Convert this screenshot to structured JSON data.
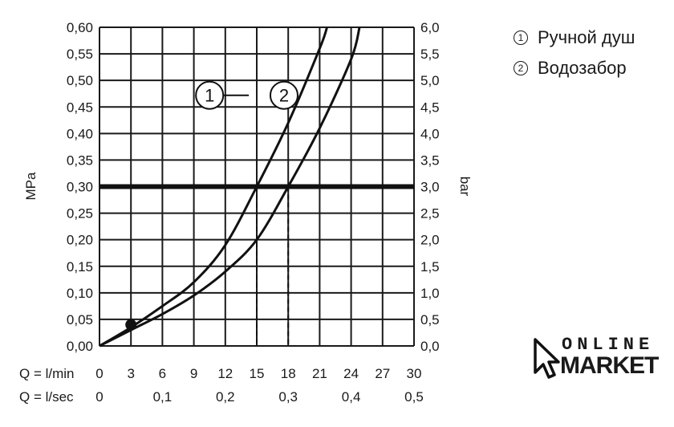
{
  "chart_data": {
    "type": "line",
    "y_left_label": "MPa",
    "y_right_label": "bar",
    "y_left_ticks": [
      "0,00",
      "0,05",
      "0,10",
      "0,15",
      "0,20",
      "0,25",
      "0,30",
      "0,35",
      "0,40",
      "0,45",
      "0,50",
      "0,55",
      "0,60"
    ],
    "y_right_ticks": [
      "0,0",
      "0,5",
      "1,0",
      "1,5",
      "2,0",
      "2,5",
      "3,0",
      "3,5",
      "4,0",
      "4,5",
      "5,0",
      "5,5",
      "6,0"
    ],
    "ylim": [
      0,
      0.6
    ],
    "x_lmin_label": "Q = l/min",
    "x_lmin_ticks": [
      "0",
      "3",
      "6",
      "9",
      "12",
      "15",
      "18",
      "21",
      "24",
      "27",
      "30"
    ],
    "x_lsec_label": "Q = l/sec",
    "x_lsec_ticks": [
      "0",
      "0,1",
      "0,2",
      "0,3",
      "0,4",
      "0,5"
    ],
    "xlim": [
      0,
      30
    ],
    "reference_pressure_mpa": 0.3,
    "series": [
      {
        "marker": "1",
        "x": [
          0,
          3,
          6,
          9,
          12,
          15,
          18,
          21,
          21.7
        ],
        "y": [
          0,
          0.035,
          0.075,
          0.12,
          0.19,
          0.3,
          0.42,
          0.56,
          0.6
        ]
      },
      {
        "marker": "2",
        "x": [
          0,
          3,
          6,
          9,
          12,
          15,
          18,
          21,
          24,
          24.8
        ],
        "y": [
          0,
          0.03,
          0.06,
          0.095,
          0.14,
          0.2,
          0.3,
          0.41,
          0.54,
          0.6
        ]
      }
    ],
    "grid": true
  },
  "legend": [
    {
      "num": "1",
      "label": "Ручной душ"
    },
    {
      "num": "2",
      "label": "Водозабор"
    }
  ],
  "logo": {
    "top": "ONLINE",
    "bottom": "MARKET"
  }
}
